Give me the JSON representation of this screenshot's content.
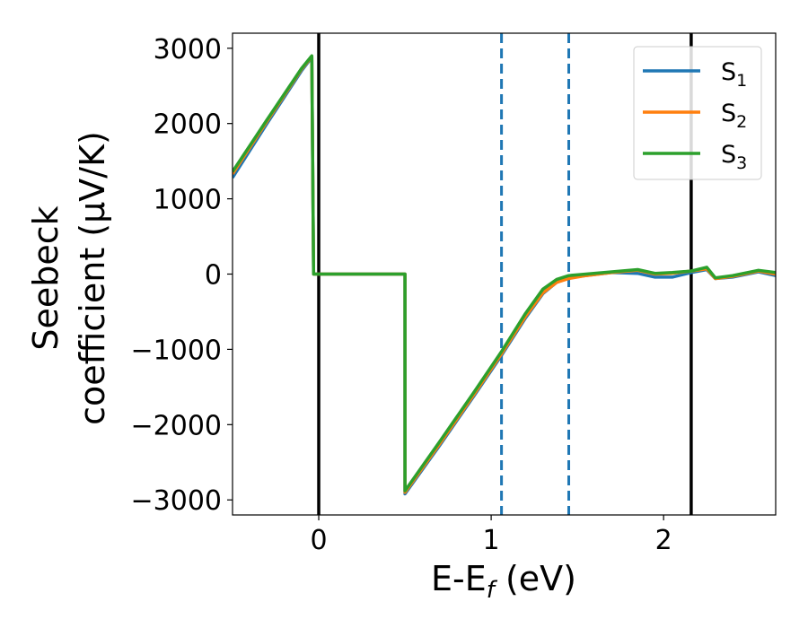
{
  "chart_data": {
    "type": "line",
    "xlabel": "E-E",
    "xlabel_sub": "f",
    "xlabel_unit": " (eV)",
    "ylabel_line1": "Seebeck",
    "ylabel_line2": "coefficient  (μV/K)",
    "xlim": [
      -0.5,
      2.65
    ],
    "ylim": [
      -3200,
      3200
    ],
    "xticks": [
      0,
      1,
      2
    ],
    "xtick_labels": [
      "0",
      "1",
      "2"
    ],
    "yticks": [
      -3000,
      -2000,
      -1000,
      0,
      1000,
      2000,
      3000
    ],
    "ytick_labels": [
      "−3000",
      "−2000",
      "−1000",
      "0",
      "1000",
      "2000",
      "3000"
    ],
    "grid": false,
    "legend_position": "top-right",
    "vlines": [
      {
        "x": 0.0,
        "style": "solid",
        "color": "#000000"
      },
      {
        "x": 2.16,
        "style": "solid",
        "color": "#000000"
      },
      {
        "x": 1.06,
        "style": "dashed",
        "color": "#1f77b4"
      },
      {
        "x": 1.45,
        "style": "dashed",
        "color": "#1f77b4"
      }
    ],
    "series": [
      {
        "name": "S",
        "name_sub": "1",
        "color": "#1f77b4",
        "points": [
          [
            -0.5,
            1280
          ],
          [
            -0.3,
            2000
          ],
          [
            -0.1,
            2700
          ],
          [
            -0.04,
            2880
          ],
          [
            -0.03,
            0
          ],
          [
            0.5,
            0
          ],
          [
            0.5,
            -2920
          ],
          [
            0.7,
            -2280
          ],
          [
            0.9,
            -1620
          ],
          [
            1.06,
            -1080
          ],
          [
            1.2,
            -580
          ],
          [
            1.3,
            -260
          ],
          [
            1.38,
            -110
          ],
          [
            1.45,
            -50
          ],
          [
            1.55,
            -20
          ],
          [
            1.7,
            20
          ],
          [
            1.85,
            10
          ],
          [
            1.95,
            -40
          ],
          [
            2.05,
            -40
          ],
          [
            2.16,
            20
          ],
          [
            2.25,
            60
          ],
          [
            2.3,
            -60
          ],
          [
            2.4,
            -40
          ],
          [
            2.55,
            30
          ],
          [
            2.65,
            -20
          ]
        ]
      },
      {
        "name": "S",
        "name_sub": "2",
        "color": "#ff7f0e",
        "points": [
          [
            -0.5,
            1330
          ],
          [
            -0.3,
            2030
          ],
          [
            -0.1,
            2720
          ],
          [
            -0.04,
            2890
          ],
          [
            -0.03,
            0
          ],
          [
            0.5,
            0
          ],
          [
            0.5,
            -2900
          ],
          [
            0.7,
            -2260
          ],
          [
            0.9,
            -1600
          ],
          [
            1.06,
            -1060
          ],
          [
            1.2,
            -560
          ],
          [
            1.3,
            -250
          ],
          [
            1.38,
            -110
          ],
          [
            1.45,
            -60
          ],
          [
            1.55,
            -20
          ],
          [
            1.7,
            20
          ],
          [
            1.85,
            50
          ],
          [
            1.95,
            0
          ],
          [
            2.05,
            10
          ],
          [
            2.16,
            40
          ],
          [
            2.25,
            70
          ],
          [
            2.3,
            -60
          ],
          [
            2.4,
            -30
          ],
          [
            2.55,
            40
          ],
          [
            2.65,
            0
          ]
        ]
      },
      {
        "name": "S",
        "name_sub": "3",
        "color": "#2ca02c",
        "points": [
          [
            -0.5,
            1360
          ],
          [
            -0.3,
            2050
          ],
          [
            -0.1,
            2730
          ],
          [
            -0.04,
            2900
          ],
          [
            -0.03,
            0
          ],
          [
            0.5,
            0
          ],
          [
            0.5,
            -2880
          ],
          [
            0.7,
            -2230
          ],
          [
            0.9,
            -1570
          ],
          [
            1.06,
            -1030
          ],
          [
            1.2,
            -520
          ],
          [
            1.3,
            -200
          ],
          [
            1.38,
            -70
          ],
          [
            1.45,
            -20
          ],
          [
            1.55,
            0
          ],
          [
            1.7,
            30
          ],
          [
            1.85,
            60
          ],
          [
            1.95,
            10
          ],
          [
            2.05,
            20
          ],
          [
            2.16,
            40
          ],
          [
            2.25,
            90
          ],
          [
            2.3,
            -50
          ],
          [
            2.4,
            -20
          ],
          [
            2.55,
            50
          ],
          [
            2.65,
            20
          ]
        ]
      }
    ]
  }
}
